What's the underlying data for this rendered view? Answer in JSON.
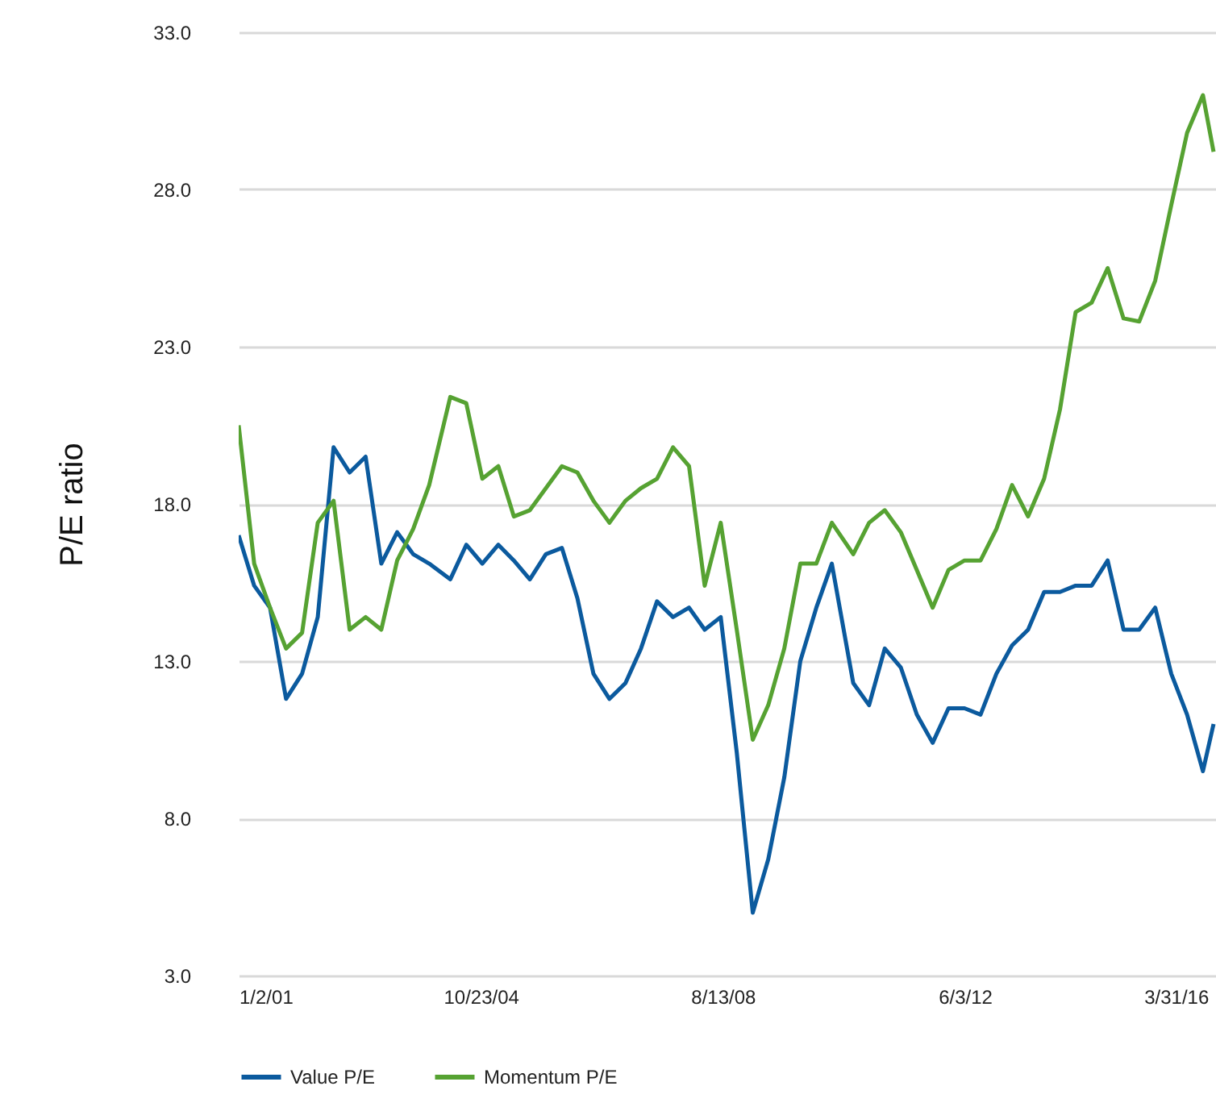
{
  "chart_data": {
    "type": "line",
    "ylabel": "P/E ratio",
    "x": [
      "2001-01-02",
      "2001-04",
      "2001-07",
      "2001-10",
      "2002-01",
      "2002-04",
      "2002-07",
      "2002-10",
      "2003-01",
      "2003-04",
      "2003-07",
      "2003-10",
      "2004-01",
      "2004-05",
      "2004-08",
      "2004-11",
      "2005-02",
      "2005-05",
      "2005-08",
      "2005-11",
      "2006-02",
      "2006-05",
      "2006-08",
      "2006-11",
      "2007-02",
      "2007-05",
      "2007-08",
      "2007-11",
      "2008-02",
      "2008-05",
      "2008-08",
      "2008-11",
      "2009-02",
      "2009-05",
      "2009-08",
      "2009-11",
      "2010-02",
      "2010-05",
      "2010-09",
      "2010-12",
      "2011-03",
      "2011-06",
      "2011-09",
      "2011-12",
      "2012-03",
      "2012-06",
      "2012-09",
      "2012-12",
      "2013-03",
      "2013-06",
      "2013-09",
      "2013-12",
      "2014-03",
      "2014-06",
      "2014-09",
      "2014-12",
      "2015-03",
      "2015-06",
      "2015-09",
      "2015-12",
      "2016-03",
      "2016-05"
    ],
    "series": [
      {
        "name": "Value P/E",
        "color": "#0b5a9e",
        "values": [
          17,
          15.4,
          14.7,
          11.8,
          12.6,
          14.4,
          19.8,
          19,
          19.5,
          16.1,
          17.1,
          16.4,
          16.1,
          15.6,
          16.7,
          16.1,
          16.7,
          16.2,
          15.6,
          16.4,
          16.6,
          15,
          12.6,
          11.8,
          12.3,
          13.4,
          14.9,
          14.4,
          14.7,
          14,
          14.4,
          10.1,
          5.0,
          6.7,
          9.3,
          13,
          14.7,
          16.1,
          12.3,
          11.6,
          13.4,
          12.8,
          11.3,
          10.4,
          11.5,
          11.5,
          11.3,
          12.6,
          13.5,
          14,
          15.2,
          15.2,
          15.4,
          15.4,
          16.2,
          14,
          14,
          14.7,
          12.6,
          11.3,
          9.5,
          11
        ]
      },
      {
        "name": "Momentum P/E",
        "color": "#56a232",
        "values": [
          20.5,
          16.1,
          14.7,
          13.4,
          13.9,
          17.4,
          18.1,
          14,
          14.4,
          14,
          16.2,
          17.2,
          18.6,
          21.4,
          21.2,
          18.8,
          19.2,
          17.6,
          17.8,
          18.5,
          19.2,
          19,
          18.1,
          17.4,
          18.1,
          18.5,
          18.8,
          19.8,
          19.2,
          15.4,
          17.4,
          14,
          10.5,
          11.6,
          13.4,
          16.1,
          16.1,
          17.4,
          16.4,
          17.4,
          17.8,
          17.1,
          15.9,
          14.7,
          15.9,
          16.2,
          16.2,
          17.2,
          18.6,
          17.6,
          18.8,
          21,
          24.1,
          24.4,
          25.5,
          23.9,
          23.8,
          25.1,
          27.5,
          29.8,
          31,
          29.2
        ]
      }
    ],
    "xlim": [
      "2001-01-02",
      "2016-05-15"
    ],
    "xticks": [
      {
        "value": "2001-01-02",
        "label": "1/2/01"
      },
      {
        "value": "2004-10-23",
        "label": "10/23/04"
      },
      {
        "value": "2008-08-13",
        "label": "8/13/08"
      },
      {
        "value": "2012-06-03",
        "label": "6/3/12"
      },
      {
        "value": "2016-03-31",
        "label": "3/31/16"
      }
    ],
    "ylim": [
      3,
      33
    ],
    "yticks": [
      {
        "value": 3,
        "label": "3.0"
      },
      {
        "value": 8,
        "label": "8.0"
      },
      {
        "value": 13,
        "label": "13.0"
      },
      {
        "value": 18,
        "label": "18.0"
      },
      {
        "value": 23,
        "label": "23.0"
      },
      {
        "value": 28,
        "label": "28.0"
      },
      {
        "value": 33,
        "label": "33.0"
      }
    ],
    "grid": "y",
    "legend": "bottom",
    "marker": "none",
    "line_style": "solid"
  }
}
